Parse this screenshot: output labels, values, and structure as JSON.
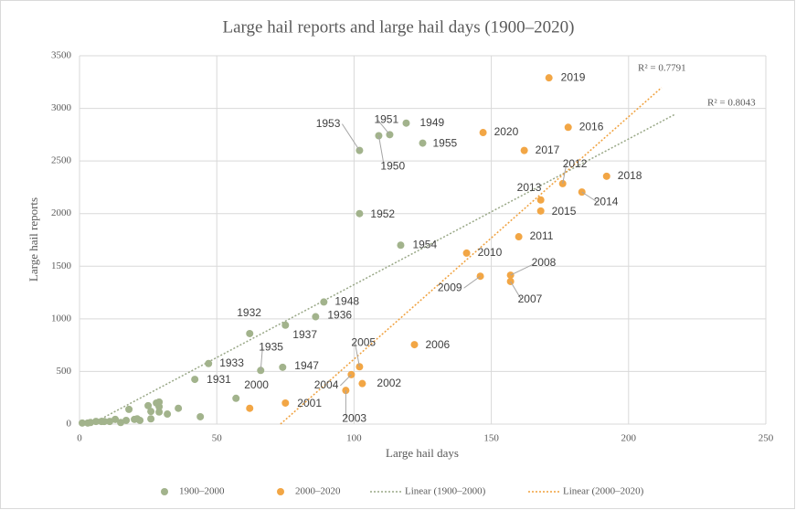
{
  "chart_data": {
    "type": "scatter",
    "title": "Large hail reports and large hail days (1900–2020)",
    "x_label": "Large hail days",
    "y_label": "Large hail reports",
    "xlim": [
      0,
      250
    ],
    "xticks": [
      0,
      50,
      100,
      150,
      200,
      250
    ],
    "ylim": [
      0,
      3500
    ],
    "yticks": [
      0,
      500,
      1000,
      1500,
      2000,
      2500,
      3000,
      3500
    ],
    "grid": true,
    "legend": "bottom",
    "series": [
      {
        "name": "1900–2000",
        "color": "#a2b38c",
        "x": [
          102,
          109,
          113,
          119,
          125,
          102,
          117,
          89,
          86,
          75,
          62,
          47,
          66,
          74,
          42,
          57,
          44,
          36,
          32,
          29,
          28,
          29,
          29,
          25,
          26,
          26,
          21,
          22,
          20,
          18,
          17,
          15,
          13,
          11,
          9,
          8,
          6,
          4,
          3,
          1
        ],
        "values": [
          2600,
          2740,
          2750,
          2860,
          2670,
          2000,
          1700,
          1160,
          1020,
          940,
          860,
          575,
          510,
          540,
          425,
          245,
          70,
          150,
          95,
          210,
          200,
          165,
          115,
          175,
          50,
          120,
          50,
          35,
          45,
          140,
          35,
          15,
          45,
          25,
          25,
          25,
          25,
          15,
          10,
          10
        ],
        "labels": [
          "1953",
          "1950",
          "1951",
          "1949",
          "1955",
          "1952",
          "1954",
          "1948",
          "1936",
          "1937",
          "1932",
          "1933",
          "1935",
          "1947",
          "1931",
          null,
          null,
          null,
          null,
          null,
          null,
          null,
          null,
          null,
          null,
          null,
          null,
          null,
          null,
          null,
          null,
          null,
          null,
          null,
          null,
          null,
          null,
          null,
          null,
          null
        ]
      },
      {
        "name": "2000–2020",
        "color": "#f2a645",
        "x": [
          171,
          147,
          178,
          162,
          192,
          176,
          168,
          183,
          168,
          160,
          141,
          146,
          157,
          157,
          122,
          102,
          99,
          103,
          97,
          75,
          62
        ],
        "values": [
          3290,
          2770,
          2820,
          2600,
          2355,
          2285,
          2130,
          2205,
          2025,
          1780,
          1625,
          1405,
          1415,
          1355,
          755,
          545,
          470,
          385,
          320,
          200,
          150
        ],
        "labels": [
          "2019",
          "2020",
          "2016",
          "2017",
          "2018",
          "2012",
          "2013",
          "2014",
          "2015",
          "2011",
          "2010",
          "2009",
          "2008",
          "2007",
          "2006",
          "2005",
          "2004",
          "2002",
          "2003",
          "2001",
          "2000"
        ]
      }
    ],
    "trendlines": [
      {
        "name": "Linear (1900–2000)",
        "color": "#98a786",
        "x": [
          4.3,
          217
        ],
        "values": [
          0,
          2945
        ],
        "r2_label": "R² = 0.8043"
      },
      {
        "name": "Linear (2000–2020)",
        "color": "#f0a03c",
        "x": [
          73.2,
          212
        ],
        "values": [
          0,
          3197
        ],
        "r2_label": "R² = 0.7791"
      }
    ]
  }
}
